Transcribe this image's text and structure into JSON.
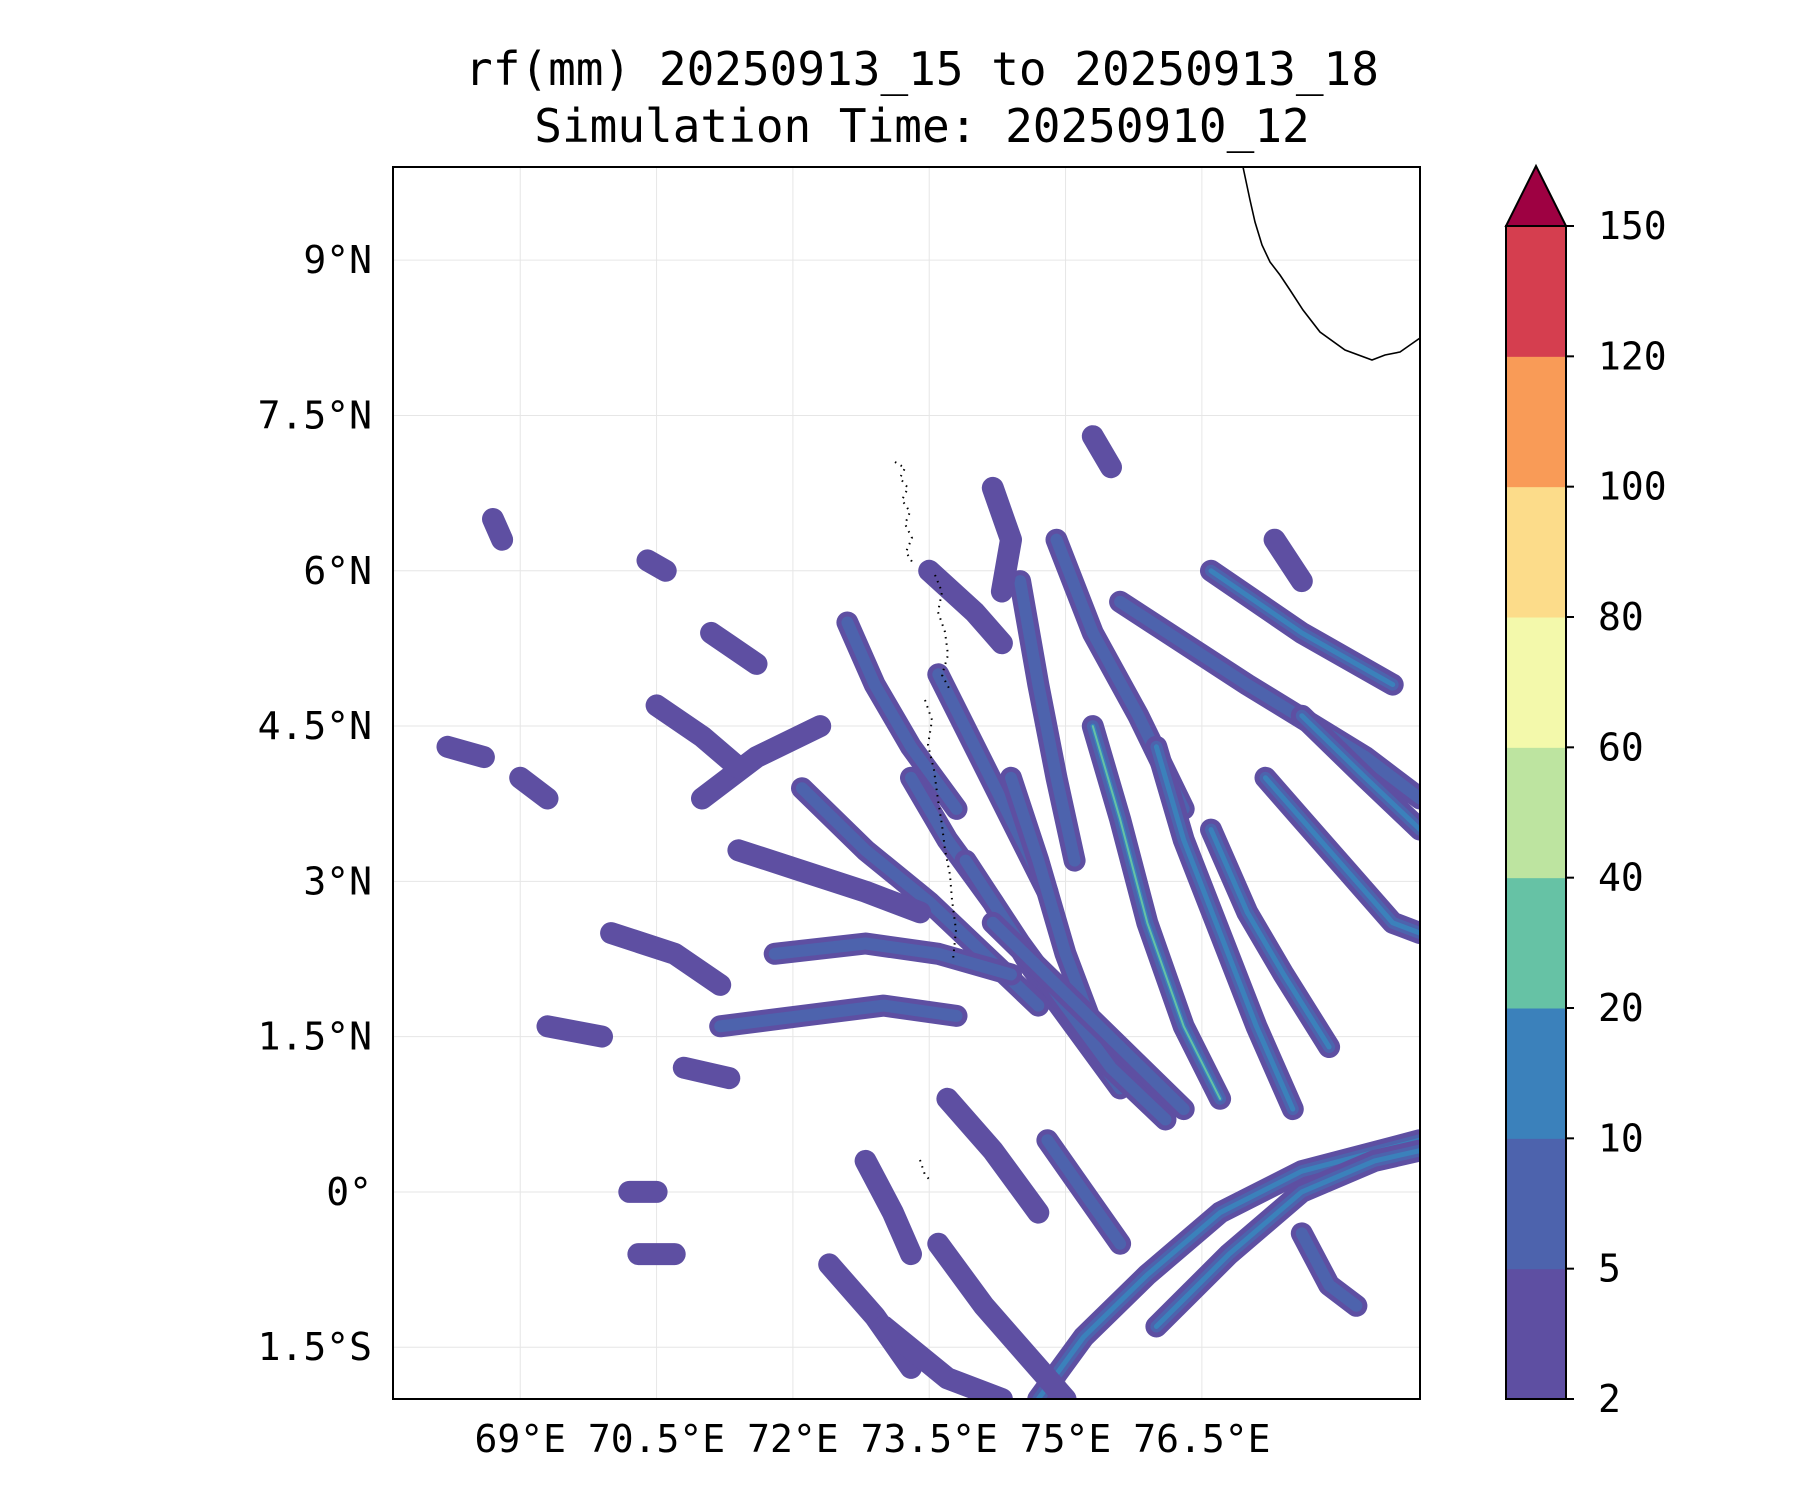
{
  "title": {
    "line1": "rf(mm) 20250913_15 to 20250913_18",
    "line2": "Simulation Time: 20250910_12"
  },
  "map": {
    "lon_range": [
      67.6,
      78.9
    ],
    "lat_range": [
      -2.0,
      9.9
    ],
    "x_ticks": [
      {
        "value": 69,
        "label": "69°E"
      },
      {
        "value": 70.5,
        "label": "70.5°E"
      },
      {
        "value": 72,
        "label": "72°E"
      },
      {
        "value": 73.5,
        "label": "73.5°E"
      },
      {
        "value": 75,
        "label": "75°E"
      },
      {
        "value": 76.5,
        "label": "76.5°E"
      }
    ],
    "y_ticks": [
      {
        "value": 9,
        "label": "9°N"
      },
      {
        "value": 7.5,
        "label": "7.5°N"
      },
      {
        "value": 6,
        "label": "6°N"
      },
      {
        "value": 4.5,
        "label": "4.5°N"
      },
      {
        "value": 3,
        "label": "3°N"
      },
      {
        "value": 1.5,
        "label": "1.5°N"
      },
      {
        "value": 0,
        "label": "0°"
      },
      {
        "value": -1.5,
        "label": "1.5°S"
      }
    ],
    "grid": true
  },
  "colorbar": {
    "levels": [
      "2",
      "5",
      "10",
      "20",
      "40",
      "60",
      "80",
      "100",
      "120",
      "150"
    ],
    "colors": [
      "#5e4fa2",
      "#4d63ad",
      "#3b81bb",
      "#66c2a5",
      "#bde4a0",
      "#f3f9ab",
      "#fcdc8a",
      "#f99b57",
      "#d53e4f"
    ],
    "extend_color": "#9e0142",
    "extend": "max"
  },
  "rain_bands": [
    {
      "pts": [
        [
          75.6,
          5.7
        ],
        [
          77.0,
          4.9
        ],
        [
          78.3,
          4.2
        ],
        [
          78.9,
          3.8
        ]
      ],
      "max": 1
    },
    {
      "pts": [
        [
          74.9,
          6.3
        ],
        [
          75.3,
          5.4
        ],
        [
          75.8,
          4.6
        ],
        [
          76.3,
          3.7
        ]
      ],
      "max": 1
    },
    {
      "pts": [
        [
          74.5,
          5.9
        ],
        [
          74.7,
          4.9
        ],
        [
          74.9,
          4.0
        ],
        [
          75.1,
          3.2
        ]
      ],
      "max": 1
    },
    {
      "pts": [
        [
          75.3,
          4.5
        ],
        [
          75.6,
          3.6
        ],
        [
          75.9,
          2.6
        ],
        [
          76.3,
          1.6
        ],
        [
          76.7,
          0.9
        ]
      ],
      "max": 3
    },
    {
      "pts": [
        [
          76.0,
          4.3
        ],
        [
          76.3,
          3.4
        ],
        [
          76.7,
          2.5
        ],
        [
          77.1,
          1.6
        ],
        [
          77.5,
          0.8
        ]
      ],
      "max": 2
    },
    {
      "pts": [
        [
          76.6,
          3.5
        ],
        [
          77.0,
          2.7
        ],
        [
          77.4,
          2.1
        ],
        [
          77.9,
          1.4
        ]
      ],
      "max": 2
    },
    {
      "pts": [
        [
          77.2,
          4.0
        ],
        [
          77.6,
          3.6
        ],
        [
          78.1,
          3.1
        ],
        [
          78.6,
          2.6
        ],
        [
          78.9,
          2.5
        ]
      ],
      "max": 2
    },
    {
      "pts": [
        [
          77.6,
          4.6
        ],
        [
          78.3,
          4.0
        ],
        [
          78.9,
          3.5
        ]
      ],
      "max": 2
    },
    {
      "pts": [
        [
          76.6,
          6.0
        ],
        [
          77.6,
          5.4
        ],
        [
          78.6,
          4.9
        ]
      ],
      "max": 2
    },
    {
      "pts": [
        [
          73.3,
          4.0
        ],
        [
          73.7,
          3.4
        ],
        [
          74.2,
          2.8
        ],
        [
          74.6,
          2.2
        ],
        [
          75.1,
          1.6
        ],
        [
          75.6,
          1.0
        ]
      ],
      "max": 1
    },
    {
      "pts": [
        [
          72.1,
          3.9
        ],
        [
          72.8,
          3.3
        ],
        [
          73.5,
          2.8
        ],
        [
          74.1,
          2.3
        ],
        [
          74.7,
          1.8
        ]
      ],
      "max": 1
    },
    {
      "pts": [
        [
          71.8,
          2.3
        ],
        [
          72.8,
          2.4
        ],
        [
          73.6,
          2.3
        ],
        [
          74.4,
          2.1
        ]
      ],
      "max": 1
    },
    {
      "pts": [
        [
          71.4,
          3.3
        ],
        [
          72.1,
          3.1
        ],
        [
          72.8,
          2.9
        ],
        [
          73.4,
          2.7
        ]
      ],
      "max": 0
    },
    {
      "pts": [
        [
          71.2,
          1.6
        ],
        [
          72.1,
          1.7
        ],
        [
          73.0,
          1.8
        ],
        [
          73.8,
          1.7
        ]
      ],
      "max": 1
    },
    {
      "pts": [
        [
          72.6,
          5.5
        ],
        [
          72.9,
          4.9
        ],
        [
          73.3,
          4.3
        ],
        [
          73.8,
          3.7
        ]
      ],
      "max": 1
    },
    {
      "pts": [
        [
          73.6,
          5.0
        ],
        [
          74.0,
          4.3
        ],
        [
          74.4,
          3.6
        ],
        [
          74.8,
          2.9
        ]
      ],
      "max": 1
    },
    {
      "pts": [
        [
          74.4,
          4.0
        ],
        [
          74.7,
          3.2
        ],
        [
          75.0,
          2.3
        ],
        [
          75.3,
          1.6
        ]
      ],
      "max": 1
    },
    {
      "pts": [
        [
          73.9,
          3.2
        ],
        [
          74.5,
          2.4
        ],
        [
          75.0,
          1.8
        ],
        [
          75.5,
          1.2
        ],
        [
          76.1,
          0.7
        ]
      ],
      "max": 1
    },
    {
      "pts": [
        [
          74.2,
          2.6
        ],
        [
          74.9,
          2.0
        ],
        [
          75.6,
          1.4
        ],
        [
          76.3,
          0.8
        ]
      ],
      "max": 1
    },
    {
      "pts": [
        [
          74.7,
          -2.0
        ],
        [
          75.2,
          -1.4
        ],
        [
          75.9,
          -0.8
        ],
        [
          76.7,
          -0.2
        ],
        [
          77.6,
          0.2
        ],
        [
          78.9,
          0.5
        ]
      ],
      "max": 2
    },
    {
      "pts": [
        [
          76.0,
          -1.3
        ],
        [
          76.8,
          -0.6
        ],
        [
          77.6,
          0.0
        ],
        [
          78.4,
          0.3
        ],
        [
          78.9,
          0.4
        ]
      ],
      "max": 2
    },
    {
      "pts": [
        [
          73.6,
          -0.5
        ],
        [
          74.1,
          -1.1
        ],
        [
          74.6,
          -1.6
        ],
        [
          75.0,
          -2.0
        ]
      ],
      "max": 0
    },
    {
      "pts": [
        [
          72.4,
          -0.7
        ],
        [
          72.9,
          -1.2
        ],
        [
          73.3,
          -1.7
        ]
      ],
      "max": 0
    },
    {
      "pts": [
        [
          73.0,
          -1.3
        ],
        [
          73.7,
          -1.8
        ],
        [
          74.3,
          -2.0
        ]
      ],
      "max": 0
    },
    {
      "pts": [
        [
          71.0,
          3.8
        ],
        [
          71.6,
          4.2
        ],
        [
          72.3,
          4.5
        ]
      ],
      "max": 0
    },
    {
      "pts": [
        [
          70.5,
          4.7
        ],
        [
          71.0,
          4.4
        ],
        [
          71.4,
          4.1
        ]
      ],
      "max": 0
    },
    {
      "pts": [
        [
          71.1,
          5.4
        ],
        [
          71.6,
          5.1
        ]
      ],
      "max": 0
    },
    {
      "pts": [
        [
          70.0,
          2.5
        ],
        [
          70.7,
          2.3
        ],
        [
          71.2,
          2.0
        ]
      ],
      "max": 0
    },
    {
      "pts": [
        [
          72.8,
          0.3
        ],
        [
          73.1,
          -0.2
        ],
        [
          73.3,
          -0.6
        ]
      ],
      "max": 0
    },
    {
      "pts": [
        [
          73.7,
          0.9
        ],
        [
          74.2,
          0.4
        ],
        [
          74.7,
          -0.2
        ]
      ],
      "max": 0
    },
    {
      "pts": [
        [
          74.8,
          0.5
        ],
        [
          75.2,
          0.0
        ],
        [
          75.6,
          -0.5
        ]
      ],
      "max": 1
    },
    {
      "pts": [
        [
          77.6,
          -0.4
        ],
        [
          77.9,
          -0.9
        ],
        [
          78.2,
          -1.1
        ]
      ],
      "max": 1
    },
    {
      "pts": [
        [
          73.5,
          6.0
        ],
        [
          74.0,
          5.6
        ],
        [
          74.3,
          5.3
        ]
      ],
      "max": 0
    },
    {
      "pts": [
        [
          74.2,
          6.8
        ],
        [
          74.4,
          6.3
        ],
        [
          74.3,
          5.8
        ]
      ],
      "max": 0
    },
    {
      "pts": [
        [
          75.3,
          7.3
        ],
        [
          75.5,
          7.0
        ]
      ],
      "max": 0
    },
    {
      "pts": [
        [
          77.3,
          6.3
        ],
        [
          77.6,
          5.9
        ]
      ],
      "max": 0
    },
    {
      "pts": [
        [
          68.2,
          4.3
        ],
        [
          68.6,
          4.2
        ]
      ],
      "max": 0
    },
    {
      "pts": [
        [
          69.0,
          4.0
        ],
        [
          69.3,
          3.8
        ]
      ],
      "max": 0
    },
    {
      "pts": [
        [
          69.3,
          1.6
        ],
        [
          69.9,
          1.5
        ]
      ],
      "max": 0
    },
    {
      "pts": [
        [
          70.8,
          1.2
        ],
        [
          71.3,
          1.1
        ]
      ],
      "max": 0
    },
    {
      "pts": [
        [
          68.7,
          6.5
        ],
        [
          68.8,
          6.3
        ]
      ],
      "max": 0
    },
    {
      "pts": [
        [
          70.4,
          6.1
        ],
        [
          70.6,
          6.0
        ]
      ],
      "max": 0
    },
    {
      "pts": [
        [
          70.2,
          0.0
        ],
        [
          70.5,
          0.0
        ]
      ],
      "max": 0
    },
    {
      "pts": [
        [
          70.3,
          -0.6
        ],
        [
          70.7,
          -0.6
        ]
      ],
      "max": 0
    }
  ]
}
